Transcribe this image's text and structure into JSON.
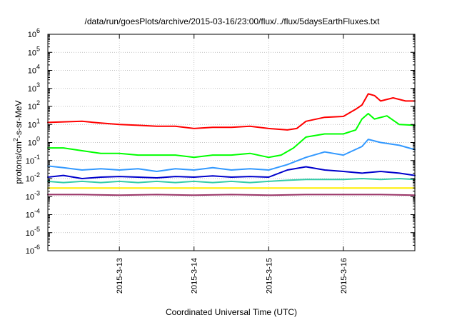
{
  "chart_data": {
    "type": "line",
    "title": "/data/run/goesPlots/archive/2015-03-16/23:00/flux/../flux/5daysEarthFluxes.txt",
    "xlabel": "Coordinated Universal Time (UTC)",
    "ylabel": "protons/cm²-s-sr-MeV",
    "y_scale": "log",
    "ylim": [
      1e-06,
      1000000.0
    ],
    "xlim": [
      "2015-03-12T01:00",
      "2015-03-16T23:00"
    ],
    "y_ticks": [
      {
        "value": 1e-06,
        "base": "10",
        "exp": "-6"
      },
      {
        "value": 1e-05,
        "base": "10",
        "exp": "-5"
      },
      {
        "value": 0.0001,
        "base": "10",
        "exp": "-4"
      },
      {
        "value": 0.001,
        "base": "10",
        "exp": "-3"
      },
      {
        "value": 0.01,
        "base": "10",
        "exp": "-2"
      },
      {
        "value": 0.1,
        "base": "10",
        "exp": "-1"
      },
      {
        "value": 1,
        "base": "10",
        "exp": "0"
      },
      {
        "value": 10,
        "base": "10",
        "exp": "1"
      },
      {
        "value": 100,
        "base": "10",
        "exp": "2"
      },
      {
        "value": 1000,
        "base": "10",
        "exp": "3"
      },
      {
        "value": 10000,
        "base": "10",
        "exp": "4"
      },
      {
        "value": 100000,
        "base": "10",
        "exp": "5"
      },
      {
        "value": 1000000,
        "base": "10",
        "exp": "6"
      }
    ],
    "x_ticks": [
      "2015-3-13",
      "2015-3-14",
      "2015-3-15",
      "2015-3-16"
    ],
    "x_tick_dates": [
      "2015-03-13T00:00",
      "2015-03-14T00:00",
      "2015-03-15T00:00",
      "2015-03-16T00:00"
    ],
    "grid": true,
    "legend": "none",
    "series": [
      {
        "color": "#ff0000",
        "x": [
          "2015-03-12T01:00",
          "2015-03-12T06:00",
          "2015-03-12T12:00",
          "2015-03-12T18:00",
          "2015-03-13T00:00",
          "2015-03-13T06:00",
          "2015-03-13T12:00",
          "2015-03-13T18:00",
          "2015-03-14T00:00",
          "2015-03-14T06:00",
          "2015-03-14T12:00",
          "2015-03-14T18:00",
          "2015-03-15T00:00",
          "2015-03-15T06:00",
          "2015-03-15T09:00",
          "2015-03-15T12:00",
          "2015-03-15T18:00",
          "2015-03-16T00:00",
          "2015-03-16T04:00",
          "2015-03-16T06:00",
          "2015-03-16T08:00",
          "2015-03-16T10:00",
          "2015-03-16T12:00",
          "2015-03-16T16:00",
          "2015-03-16T20:00",
          "2015-03-16T23:00"
        ],
        "y": [
          13,
          14,
          15,
          12,
          10,
          9,
          8,
          8,
          6,
          7,
          7,
          8,
          6,
          5,
          6,
          15,
          25,
          28,
          70,
          120,
          500,
          400,
          200,
          300,
          200,
          200
        ]
      },
      {
        "color": "#00ff00",
        "x": [
          "2015-03-12T01:00",
          "2015-03-12T06:00",
          "2015-03-12T12:00",
          "2015-03-12T18:00",
          "2015-03-13T00:00",
          "2015-03-13T06:00",
          "2015-03-13T12:00",
          "2015-03-13T18:00",
          "2015-03-14T00:00",
          "2015-03-14T06:00",
          "2015-03-14T12:00",
          "2015-03-14T18:00",
          "2015-03-15T00:00",
          "2015-03-15T04:00",
          "2015-03-15T08:00",
          "2015-03-15T12:00",
          "2015-03-15T18:00",
          "2015-03-16T00:00",
          "2015-03-16T04:00",
          "2015-03-16T06:00",
          "2015-03-16T08:00",
          "2015-03-16T10:00",
          "2015-03-16T14:00",
          "2015-03-16T18:00",
          "2015-03-16T23:00"
        ],
        "y": [
          0.5,
          0.5,
          0.35,
          0.25,
          0.25,
          0.2,
          0.2,
          0.2,
          0.15,
          0.2,
          0.2,
          0.25,
          0.15,
          0.2,
          0.5,
          2,
          3,
          3,
          5,
          20,
          40,
          20,
          30,
          10,
          9
        ]
      },
      {
        "color": "#3399ff",
        "x": [
          "2015-03-12T01:00",
          "2015-03-12T06:00",
          "2015-03-12T12:00",
          "2015-03-12T18:00",
          "2015-03-13T00:00",
          "2015-03-13T06:00",
          "2015-03-13T12:00",
          "2015-03-13T18:00",
          "2015-03-14T00:00",
          "2015-03-14T06:00",
          "2015-03-14T12:00",
          "2015-03-14T18:00",
          "2015-03-15T00:00",
          "2015-03-15T06:00",
          "2015-03-15T12:00",
          "2015-03-15T18:00",
          "2015-03-16T00:00",
          "2015-03-16T06:00",
          "2015-03-16T08:00",
          "2015-03-16T12:00",
          "2015-03-16T18:00",
          "2015-03-16T23:00"
        ],
        "y": [
          0.05,
          0.04,
          0.03,
          0.035,
          0.03,
          0.035,
          0.025,
          0.035,
          0.03,
          0.04,
          0.03,
          0.035,
          0.03,
          0.06,
          0.15,
          0.3,
          0.2,
          0.6,
          1.5,
          1.0,
          0.7,
          0.4
        ]
      },
      {
        "color": "#0000cc",
        "x": [
          "2015-03-12T01:00",
          "2015-03-12T06:00",
          "2015-03-12T12:00",
          "2015-03-12T18:00",
          "2015-03-13T00:00",
          "2015-03-13T06:00",
          "2015-03-13T12:00",
          "2015-03-13T18:00",
          "2015-03-14T00:00",
          "2015-03-14T06:00",
          "2015-03-14T12:00",
          "2015-03-14T18:00",
          "2015-03-15T00:00",
          "2015-03-15T06:00",
          "2015-03-15T12:00",
          "2015-03-15T18:00",
          "2015-03-16T00:00",
          "2015-03-16T06:00",
          "2015-03-16T12:00",
          "2015-03-16T18:00",
          "2015-03-16T23:00"
        ],
        "y": [
          0.012,
          0.015,
          0.01,
          0.012,
          0.013,
          0.012,
          0.011,
          0.013,
          0.012,
          0.014,
          0.012,
          0.013,
          0.012,
          0.03,
          0.045,
          0.03,
          0.025,
          0.02,
          0.025,
          0.02,
          0.015
        ]
      },
      {
        "color": "#33ccaa",
        "x": [
          "2015-03-12T01:00",
          "2015-03-12T06:00",
          "2015-03-12T12:00",
          "2015-03-12T18:00",
          "2015-03-13T00:00",
          "2015-03-13T06:00",
          "2015-03-13T12:00",
          "2015-03-13T18:00",
          "2015-03-14T00:00",
          "2015-03-14T06:00",
          "2015-03-14T12:00",
          "2015-03-14T18:00",
          "2015-03-15T00:00",
          "2015-03-15T06:00",
          "2015-03-15T12:00",
          "2015-03-15T18:00",
          "2015-03-16T00:00",
          "2015-03-16T06:00",
          "2015-03-16T12:00",
          "2015-03-16T18:00",
          "2015-03-16T23:00"
        ],
        "y": [
          0.007,
          0.006,
          0.007,
          0.006,
          0.007,
          0.006,
          0.007,
          0.006,
          0.007,
          0.006,
          0.007,
          0.006,
          0.007,
          0.008,
          0.009,
          0.009,
          0.009,
          0.01,
          0.009,
          0.01,
          0.009
        ]
      },
      {
        "color": "#ffee00",
        "x": [
          "2015-03-12T01:00",
          "2015-03-12T12:00",
          "2015-03-13T00:00",
          "2015-03-13T12:00",
          "2015-03-14T00:00",
          "2015-03-14T12:00",
          "2015-03-15T00:00",
          "2015-03-15T12:00",
          "2015-03-16T00:00",
          "2015-03-16T12:00",
          "2015-03-16T23:00"
        ],
        "y": [
          0.003,
          0.003,
          0.003,
          0.003,
          0.003,
          0.003,
          0.003,
          0.003,
          0.003,
          0.003,
          0.003
        ]
      },
      {
        "color": "#993366",
        "x": [
          "2015-03-12T01:00",
          "2015-03-12T12:00",
          "2015-03-13T00:00",
          "2015-03-13T12:00",
          "2015-03-14T00:00",
          "2015-03-14T12:00",
          "2015-03-15T00:00",
          "2015-03-15T12:00",
          "2015-03-16T00:00",
          "2015-03-16T12:00",
          "2015-03-16T23:00"
        ],
        "y": [
          0.0013,
          0.0013,
          0.0012,
          0.0013,
          0.0012,
          0.0013,
          0.0012,
          0.0013,
          0.0013,
          0.0013,
          0.0012
        ]
      }
    ]
  }
}
